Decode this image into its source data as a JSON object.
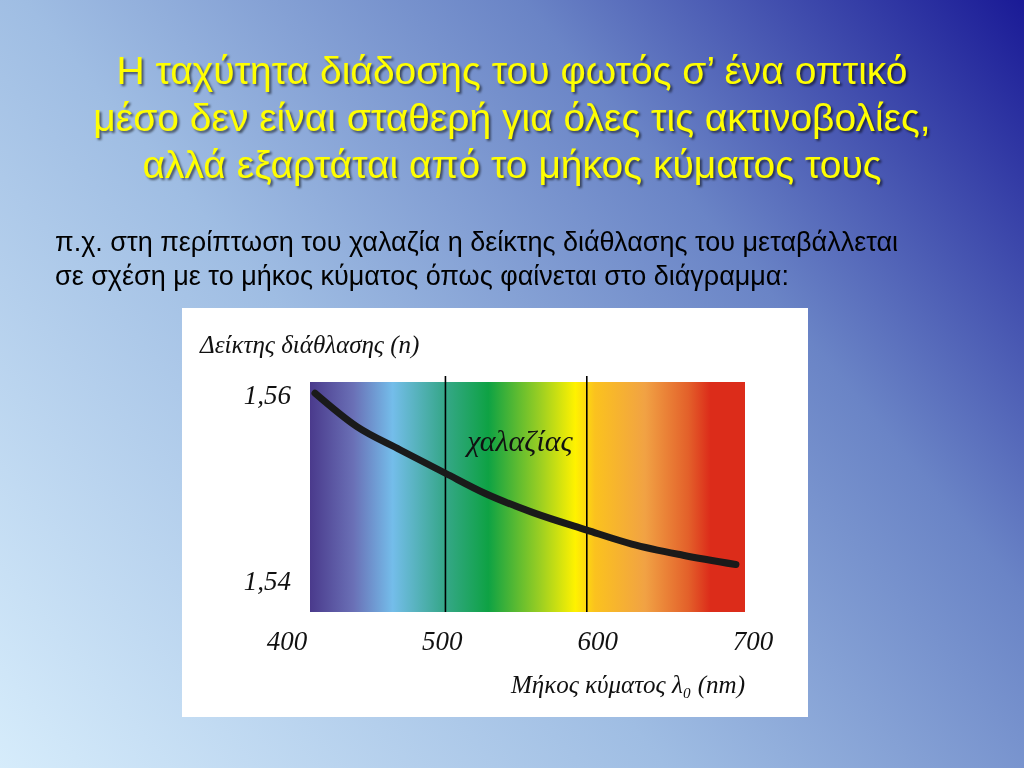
{
  "chart_data": {
    "type": "line",
    "title": "Η ταχύτητα διάδοσης του φωτός σ’ ένα οπτικό μέσο δεν είναι σταθερή για όλες τις ακτινοβολίες, αλλά εξαρτάται από το μήκος κύματος τους",
    "subtitle": "π.χ. στη περίπτωση του χαλαζία η δείκτης διάθλασης του μεταβάλλεται σε σχέση με το μήκος κύματος όπως φαίνεται στο διάγραμμα:",
    "xlabel": "Μήκος κύματος λ₀ (nm)",
    "ylabel": "Δείκτης διάθλασης (n)",
    "xlim": [
      400,
      700
    ],
    "ylim": [
      1.5366,
      1.5613
    ],
    "xticks": [
      400,
      500,
      600,
      700
    ],
    "yticks": [
      {
        "value": 1.54,
        "label": "1,54"
      },
      {
        "value": 1.56,
        "label": "1,56"
      }
    ],
    "x": [
      418,
      445,
      473,
      502,
      528,
      558,
      593,
      622,
      655,
      689
    ],
    "series": [
      {
        "name": "χαλαζίας",
        "color": "#1a1a1a",
        "values": [
          1.5601,
          1.5565,
          1.554,
          1.5515,
          1.5493,
          1.5473,
          1.5454,
          1.5439,
          1.5427,
          1.5417
        ]
      }
    ],
    "ref_lines": [
      {
        "axis": "x",
        "value": 502,
        "color": "#000000"
      },
      {
        "axis": "x",
        "value": 593,
        "color": "#000000"
      }
    ]
  }
}
